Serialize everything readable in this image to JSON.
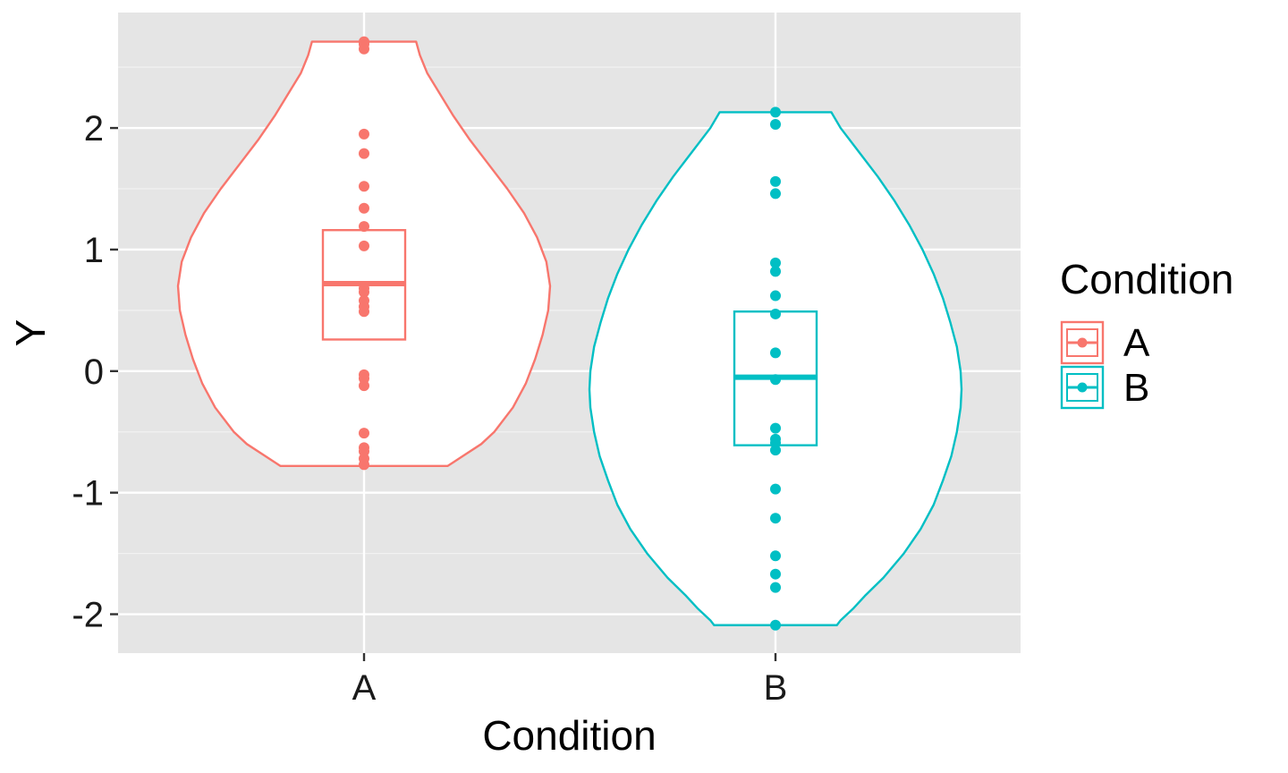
{
  "chart_data": {
    "type": "violin",
    "title": "",
    "xlabel": "Condition",
    "ylabel": "Y",
    "categories": [
      "A",
      "B"
    ],
    "ylim": [
      -2.32,
      2.95
    ],
    "yticks": [
      -2,
      -1,
      0,
      1,
      2
    ],
    "ytick_labels": [
      "-2",
      "-1",
      "0",
      "1",
      "2"
    ],
    "grid": true,
    "legend": {
      "title": "Condition",
      "position": "right",
      "entries": [
        "A",
        "B"
      ]
    },
    "series": [
      {
        "category": "A",
        "color": "#F8766D",
        "points": [
          2.71,
          2.69,
          2.65,
          1.95,
          1.79,
          1.52,
          1.34,
          1.19,
          1.03,
          0.68,
          0.65,
          0.58,
          0.53,
          0.49,
          -0.03,
          -0.06,
          -0.12,
          -0.51,
          -0.63,
          -0.66,
          -0.72,
          -0.77
        ],
        "box": {
          "q1": 0.26,
          "median": 0.72,
          "q3": 1.16
        },
        "violin": {
          "min": -0.78,
          "max": 2.71,
          "density": [
            [
              2.71,
              0.28
            ],
            [
              2.6,
              0.3
            ],
            [
              2.45,
              0.34
            ],
            [
              2.3,
              0.4
            ],
            [
              2.1,
              0.48
            ],
            [
              1.9,
              0.57
            ],
            [
              1.7,
              0.67
            ],
            [
              1.5,
              0.77
            ],
            [
              1.3,
              0.86
            ],
            [
              1.1,
              0.93
            ],
            [
              0.9,
              0.98
            ],
            [
              0.7,
              1.0
            ],
            [
              0.5,
              0.99
            ],
            [
              0.3,
              0.96
            ],
            [
              0.1,
              0.92
            ],
            [
              -0.1,
              0.87
            ],
            [
              -0.3,
              0.8
            ],
            [
              -0.5,
              0.7
            ],
            [
              -0.6,
              0.63
            ],
            [
              -0.7,
              0.53
            ],
            [
              -0.78,
              0.45
            ]
          ]
        }
      },
      {
        "category": "B",
        "color": "#00BFC4",
        "points": [
          2.13,
          2.03,
          1.56,
          1.46,
          0.89,
          0.82,
          0.62,
          0.47,
          0.15,
          -0.07,
          -0.47,
          -0.56,
          -0.59,
          -0.65,
          -0.97,
          -1.21,
          -1.52,
          -1.67,
          -1.78,
          -2.09
        ],
        "box": {
          "q1": -0.61,
          "median": -0.05,
          "q3": 0.49
        },
        "violin": {
          "min": -2.09,
          "max": 2.13,
          "density": [
            [
              2.13,
              0.3
            ],
            [
              2.0,
              0.35
            ],
            [
              1.8,
              0.45
            ],
            [
              1.6,
              0.55
            ],
            [
              1.4,
              0.64
            ],
            [
              1.2,
              0.72
            ],
            [
              1.0,
              0.79
            ],
            [
              0.8,
              0.85
            ],
            [
              0.6,
              0.9
            ],
            [
              0.4,
              0.94
            ],
            [
              0.2,
              0.975
            ],
            [
              0.0,
              0.995
            ],
            [
              -0.15,
              1.0
            ],
            [
              -0.3,
              0.995
            ],
            [
              -0.5,
              0.975
            ],
            [
              -0.7,
              0.945
            ],
            [
              -0.9,
              0.9
            ],
            [
              -1.1,
              0.85
            ],
            [
              -1.3,
              0.78
            ],
            [
              -1.5,
              0.69
            ],
            [
              -1.7,
              0.58
            ],
            [
              -1.85,
              0.48
            ],
            [
              -1.95,
              0.42
            ],
            [
              -2.05,
              0.35
            ],
            [
              -2.09,
              0.33
            ]
          ]
        }
      }
    ]
  }
}
